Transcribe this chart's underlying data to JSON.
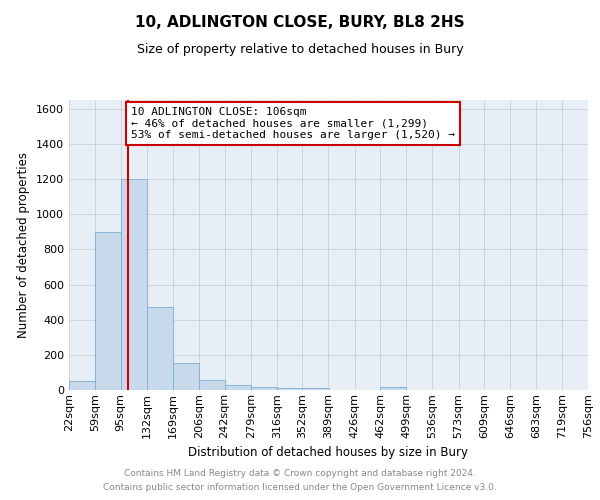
{
  "title": "10, ADLINGTON CLOSE, BURY, BL8 2HS",
  "subtitle": "Size of property relative to detached houses in Bury",
  "xlabel": "Distribution of detached houses by size in Bury",
  "ylabel": "Number of detached properties",
  "property_size": 106,
  "annotation_line1": "10 ADLINGTON CLOSE: 106sqm",
  "annotation_line2": "← 46% of detached houses are smaller (1,299)",
  "annotation_line3": "53% of semi-detached houses are larger (1,520) →",
  "footer_line1": "Contains HM Land Registry data © Crown copyright and database right 2024.",
  "footer_line2": "Contains public sector information licensed under the Open Government Licence v3.0.",
  "bar_color": "#c8d9eb",
  "bar_edge_color": "#7bafd4",
  "vline_color": "#cc0000",
  "annotation_box_color": "#cc0000",
  "bins": [
    22,
    59,
    95,
    132,
    169,
    206,
    242,
    279,
    316,
    352,
    389,
    426,
    462,
    499,
    536,
    573,
    609,
    646,
    683,
    719,
    756
  ],
  "values": [
    50,
    900,
    1200,
    470,
    155,
    55,
    28,
    18,
    12,
    10,
    0,
    0,
    15,
    0,
    0,
    0,
    0,
    0,
    0,
    0
  ],
  "ylim": [
    0,
    1650
  ],
  "yticks": [
    0,
    200,
    400,
    600,
    800,
    1000,
    1200,
    1400,
    1600
  ],
  "background_color": "#ffffff",
  "plot_bg_color": "#e8eef5",
  "grid_color": "#c8d0d8",
  "title_fontsize": 11,
  "subtitle_fontsize": 9,
  "axis_label_fontsize": 8.5,
  "tick_fontsize": 8,
  "footer_fontsize": 6.5
}
